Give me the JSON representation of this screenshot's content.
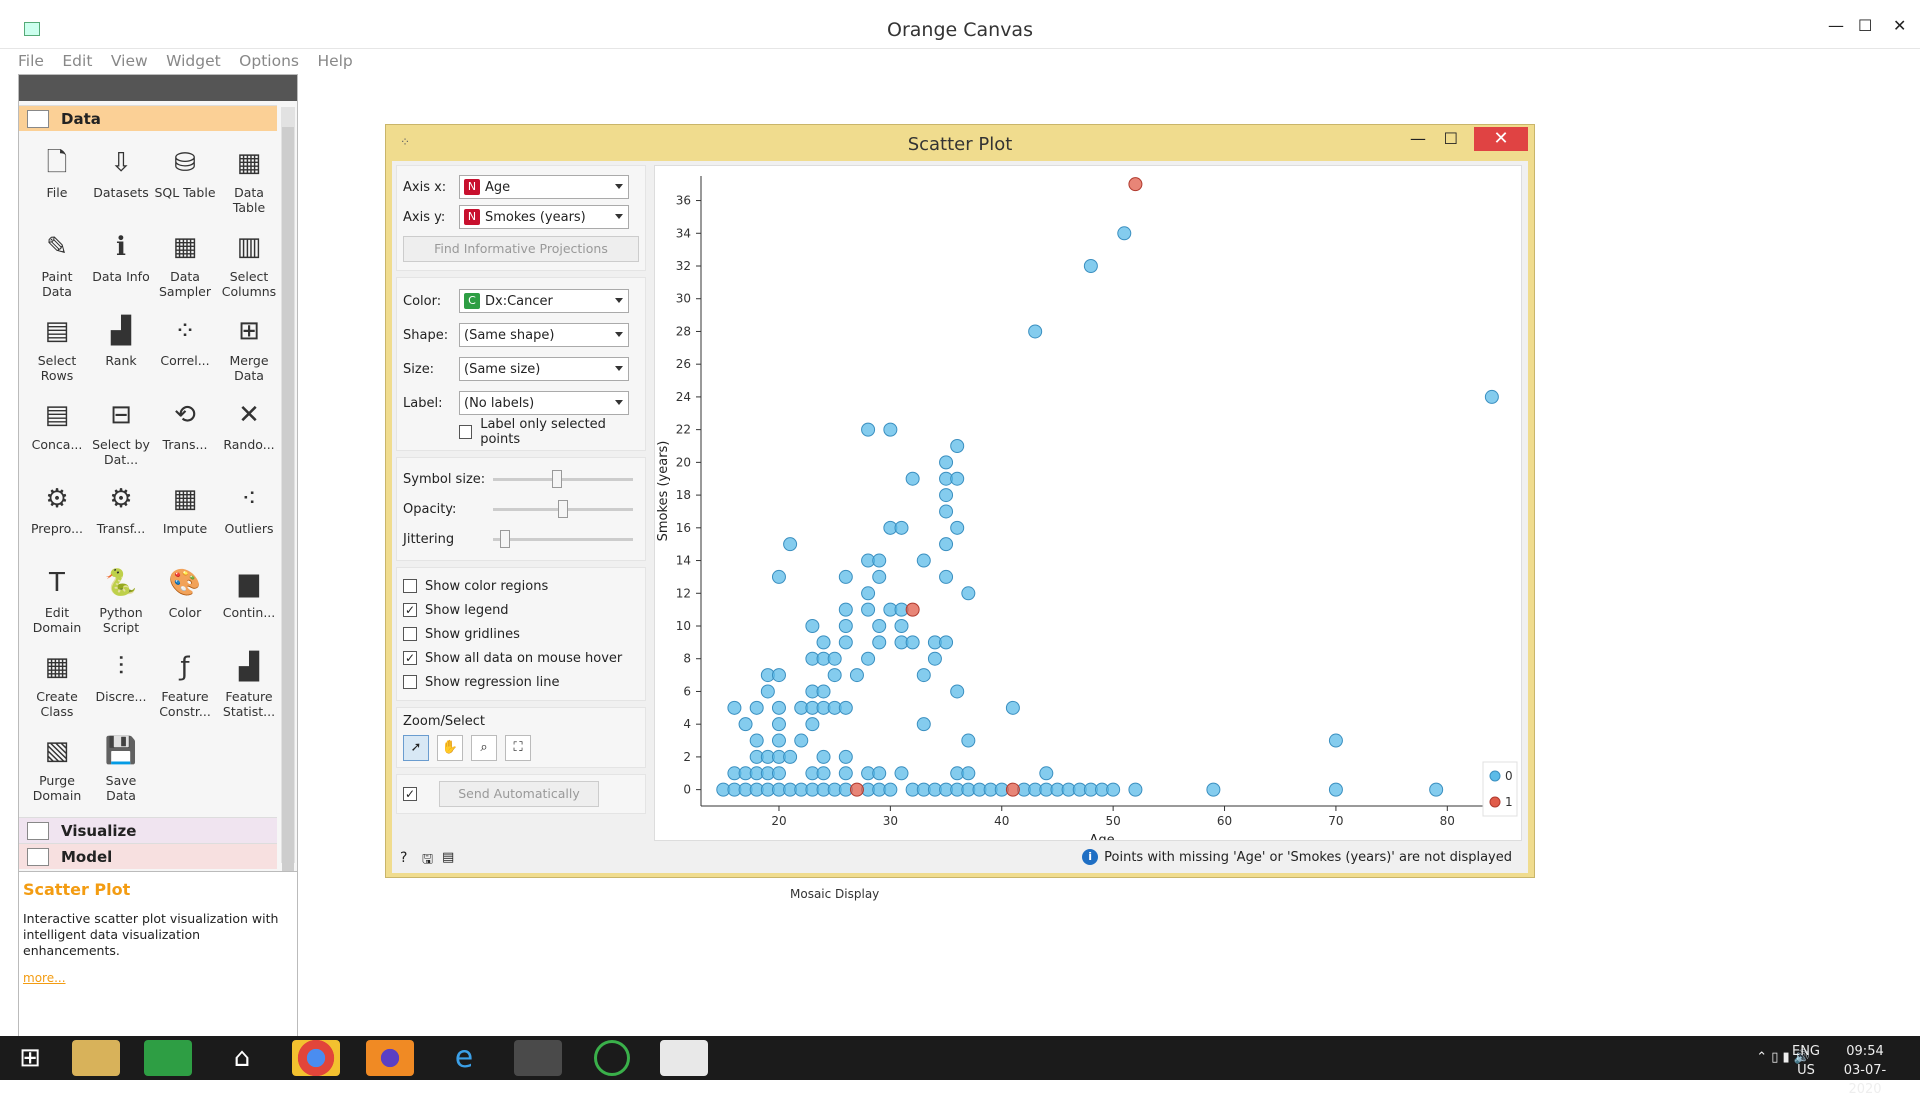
{
  "window": {
    "title": "Orange Canvas"
  },
  "menu": [
    "File",
    "Edit",
    "View",
    "Widget",
    "Options",
    "Help"
  ],
  "toolbox": {
    "categories": {
      "data": "Data",
      "visualize": "Visualize",
      "model": "Model"
    },
    "tools": [
      {
        "label": "File",
        "icon": "file-icon",
        "glyph": "🗋"
      },
      {
        "label": "Datasets",
        "icon": "datasets-icon",
        "glyph": "⇩"
      },
      {
        "label": "SQL Table",
        "icon": "sql-table-icon",
        "glyph": "⛁"
      },
      {
        "label": "Data Table",
        "icon": "data-table-icon",
        "glyph": "▦"
      },
      {
        "label": "Paint Data",
        "icon": "paint-data-icon",
        "glyph": "✎"
      },
      {
        "label": "Data Info",
        "icon": "data-info-icon",
        "glyph": "ℹ"
      },
      {
        "label": "Data Sampler",
        "icon": "data-sampler-icon",
        "glyph": "▦"
      },
      {
        "label": "Select Columns",
        "icon": "select-columns-icon",
        "glyph": "▥"
      },
      {
        "label": "Select Rows",
        "icon": "select-rows-icon",
        "glyph": "▤"
      },
      {
        "label": "Rank",
        "icon": "rank-icon",
        "glyph": "▟"
      },
      {
        "label": "Correl...",
        "icon": "correlations-icon",
        "glyph": "⁘"
      },
      {
        "label": "Merge Data",
        "icon": "merge-data-icon",
        "glyph": "⊞"
      },
      {
        "label": "Conca...",
        "icon": "concatenate-icon",
        "glyph": "▤"
      },
      {
        "label": "Select by Dat...",
        "icon": "select-by-data-icon",
        "glyph": "⊟"
      },
      {
        "label": "Trans...",
        "icon": "transpose-icon",
        "glyph": "⟲"
      },
      {
        "label": "Rando...",
        "icon": "randomize-icon",
        "glyph": "✕"
      },
      {
        "label": "Prepro...",
        "icon": "preprocess-icon",
        "glyph": "⚙"
      },
      {
        "label": "Transf...",
        "icon": "transform-icon",
        "glyph": "⚙"
      },
      {
        "label": "Impute",
        "icon": "impute-icon",
        "glyph": "▦"
      },
      {
        "label": "Outliers",
        "icon": "outliers-icon",
        "glyph": "⁖"
      },
      {
        "label": "Edit Domain",
        "icon": "edit-domain-icon",
        "glyph": "T"
      },
      {
        "label": "Python Script",
        "icon": "python-script-icon",
        "glyph": "🐍"
      },
      {
        "label": "Color",
        "icon": "color-icon",
        "glyph": "🎨"
      },
      {
        "label": "Contin...",
        "icon": "continuize-icon",
        "glyph": "▆"
      },
      {
        "label": "Create Class",
        "icon": "create-class-icon",
        "glyph": "▦"
      },
      {
        "label": "Discre...",
        "icon": "discretize-icon",
        "glyph": "⫶"
      },
      {
        "label": "Feature Constr...",
        "icon": "feature-constructor-icon",
        "glyph": "ƒ"
      },
      {
        "label": "Feature Statist...",
        "icon": "feature-statistics-icon",
        "glyph": "▟"
      },
      {
        "label": "Purge Domain",
        "icon": "purge-domain-icon",
        "glyph": "▧"
      },
      {
        "label": "Save Data",
        "icon": "save-data-icon",
        "glyph": "💾"
      }
    ]
  },
  "help": {
    "title": "Scatter Plot",
    "description": "Interactive scatter plot visualization with intelligent data visualization enhancements.",
    "more": "more..."
  },
  "canvas": {
    "node_label": "Mosaic Display"
  },
  "scatter": {
    "title": "Scatter Plot",
    "axis_x_label": "Axis x:",
    "axis_x": "Age",
    "axis_x_tag": "N",
    "axis_y_label": "Axis y:",
    "axis_y": "Smokes (years)",
    "axis_y_tag": "N",
    "find_projections": "Find Informative Projections",
    "color_label": "Color:",
    "color": "Dx:Cancer",
    "color_tag": "C",
    "shape_label": "Shape:",
    "shape": "(Same shape)",
    "size_label": "Size:",
    "size": "(Same size)",
    "label_label": "Label:",
    "label": "(No labels)",
    "label_only_selected": "Label only selected points",
    "symbol_size_label": "Symbol size:",
    "opacity_label": "Opacity:",
    "jittering_label": "Jittering",
    "symbol_size": 0.45,
    "opacity": 0.5,
    "jittering": 0.05,
    "checkboxes": [
      {
        "label": "Show color regions",
        "checked": false
      },
      {
        "label": "Show legend",
        "checked": true
      },
      {
        "label": "Show gridlines",
        "checked": false
      },
      {
        "label": "Show all data on mouse hover",
        "checked": true
      },
      {
        "label": "Show regression line",
        "checked": false
      }
    ],
    "zoom_select": "Zoom/Select",
    "send_automatically": "Send Automatically",
    "status_message": "Points with missing 'Age' or 'Smokes (years)' are not displayed"
  },
  "chart_data": {
    "type": "scatter",
    "xlabel": "Age",
    "ylabel": "Smokes (years)",
    "xlim": [
      13,
      85
    ],
    "ylim": [
      -1,
      37.5
    ],
    "xticks": [
      20,
      30,
      40,
      50,
      60,
      70,
      80
    ],
    "yticks": [
      0,
      2,
      4,
      6,
      8,
      10,
      12,
      14,
      16,
      18,
      20,
      22,
      24,
      26,
      28,
      30,
      32,
      34,
      36
    ],
    "legend": {
      "placement": "bottom-right",
      "entries": [
        "0",
        "1"
      ]
    },
    "colors": {
      "0": "#5bbbe8",
      "1": "#e05c4a"
    },
    "series": [
      {
        "name": "0",
        "points": [
          [
            15,
            0
          ],
          [
            16,
            0
          ],
          [
            17,
            0
          ],
          [
            18,
            0
          ],
          [
            19,
            0
          ],
          [
            20,
            0
          ],
          [
            21,
            0
          ],
          [
            22,
            0
          ],
          [
            23,
            0
          ],
          [
            24,
            0
          ],
          [
            25,
            0
          ],
          [
            26,
            0
          ],
          [
            28,
            0
          ],
          [
            29,
            0
          ],
          [
            30,
            0
          ],
          [
            32,
            0
          ],
          [
            33,
            0
          ],
          [
            34,
            0
          ],
          [
            35,
            0
          ],
          [
            36,
            0
          ],
          [
            37,
            0
          ],
          [
            38,
            0
          ],
          [
            39,
            0
          ],
          [
            40,
            0
          ],
          [
            42,
            0
          ],
          [
            43,
            0
          ],
          [
            44,
            0
          ],
          [
            45,
            0
          ],
          [
            46,
            0
          ],
          [
            47,
            0
          ],
          [
            48,
            0
          ],
          [
            49,
            0
          ],
          [
            50,
            0
          ],
          [
            52,
            0
          ],
          [
            59,
            0
          ],
          [
            70,
            0
          ],
          [
            79,
            0
          ],
          [
            16,
            1
          ],
          [
            17,
            1
          ],
          [
            18,
            1
          ],
          [
            19,
            1
          ],
          [
            20,
            1
          ],
          [
            23,
            1
          ],
          [
            24,
            1
          ],
          [
            26,
            1
          ],
          [
            28,
            1
          ],
          [
            29,
            1
          ],
          [
            31,
            1
          ],
          [
            36,
            1
          ],
          [
            37,
            1
          ],
          [
            44,
            1
          ],
          [
            18,
            2
          ],
          [
            19,
            2
          ],
          [
            20,
            2
          ],
          [
            21,
            2
          ],
          [
            24,
            2
          ],
          [
            26,
            2
          ],
          [
            18,
            3
          ],
          [
            20,
            3
          ],
          [
            22,
            3
          ],
          [
            37,
            3
          ],
          [
            70,
            3
          ],
          [
            17,
            4
          ],
          [
            20,
            4
          ],
          [
            23,
            4
          ],
          [
            33,
            4
          ],
          [
            16,
            5
          ],
          [
            18,
            5
          ],
          [
            20,
            5
          ],
          [
            22,
            5
          ],
          [
            23,
            5
          ],
          [
            24,
            5
          ],
          [
            25,
            5
          ],
          [
            26,
            5
          ],
          [
            41,
            5
          ],
          [
            19,
            6
          ],
          [
            23,
            6
          ],
          [
            24,
            6
          ],
          [
            36,
            6
          ],
          [
            19,
            7
          ],
          [
            20,
            7
          ],
          [
            25,
            7
          ],
          [
            27,
            7
          ],
          [
            33,
            7
          ],
          [
            23,
            8
          ],
          [
            24,
            8
          ],
          [
            25,
            8
          ],
          [
            28,
            8
          ],
          [
            34,
            8
          ],
          [
            24,
            9
          ],
          [
            26,
            9
          ],
          [
            29,
            9
          ],
          [
            31,
            9
          ],
          [
            32,
            9
          ],
          [
            34,
            9
          ],
          [
            35,
            9
          ],
          [
            23,
            10
          ],
          [
            26,
            10
          ],
          [
            29,
            10
          ],
          [
            31,
            10
          ],
          [
            26,
            11
          ],
          [
            28,
            11
          ],
          [
            30,
            11
          ],
          [
            31,
            11
          ],
          [
            28,
            12
          ],
          [
            37,
            12
          ],
          [
            20,
            13
          ],
          [
            26,
            13
          ],
          [
            29,
            13
          ],
          [
            35,
            13
          ],
          [
            28,
            14
          ],
          [
            29,
            14
          ],
          [
            33,
            14
          ],
          [
            21,
            15
          ],
          [
            35,
            15
          ],
          [
            30,
            16
          ],
          [
            31,
            16
          ],
          [
            36,
            16
          ],
          [
            35,
            17
          ],
          [
            35,
            18
          ],
          [
            32,
            19
          ],
          [
            35,
            19
          ],
          [
            36,
            19
          ],
          [
            35,
            20
          ],
          [
            36,
            21
          ],
          [
            28,
            22
          ],
          [
            30,
            22
          ],
          [
            84,
            24
          ],
          [
            43,
            28
          ],
          [
            48,
            32
          ],
          [
            51,
            34
          ]
        ]
      },
      {
        "name": "1",
        "points": [
          [
            27,
            0
          ],
          [
            41,
            0
          ],
          [
            32,
            11
          ],
          [
            52,
            37
          ]
        ]
      }
    ]
  }
}
